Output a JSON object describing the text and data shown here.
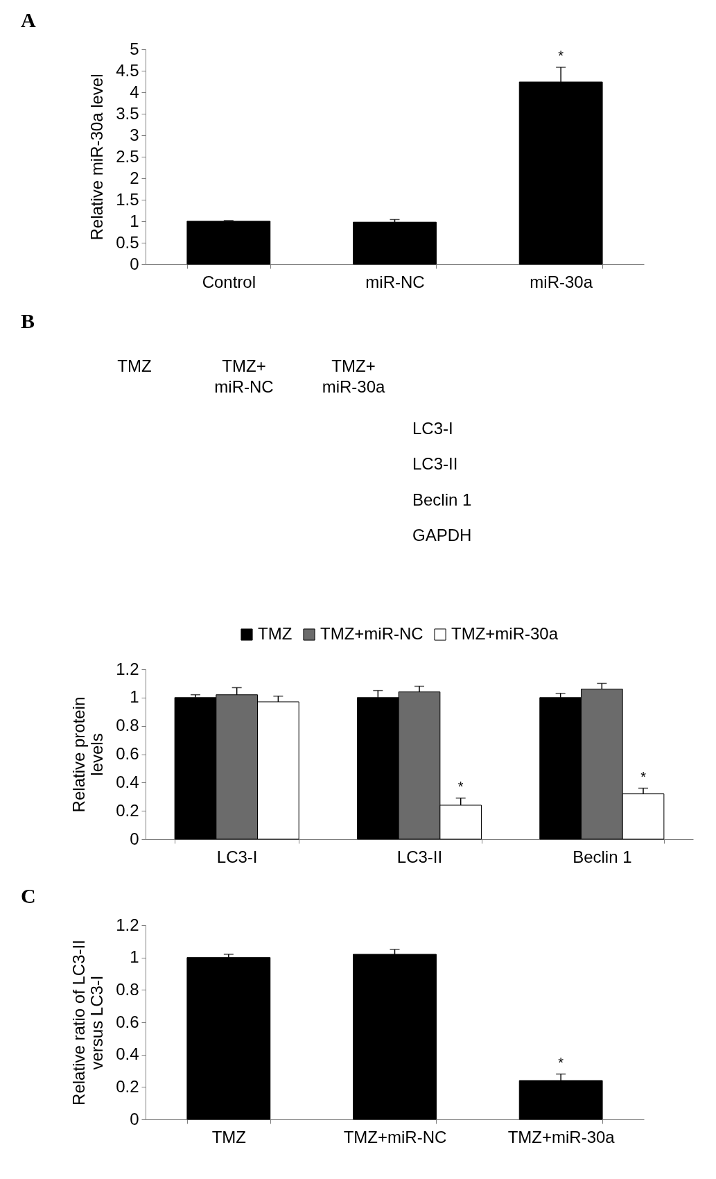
{
  "chart_data": [
    {
      "type": "bar",
      "title": "A",
      "ylabel": "Relative miR-30a level",
      "categories": [
        "Control",
        "miR-NC",
        "miR-30a"
      ],
      "values": [
        1.0,
        0.98,
        4.24
      ],
      "errors": [
        [
          1.0,
          1.02
        ],
        [
          0.98,
          1.04
        ],
        [
          4.24,
          4.58
        ]
      ],
      "value_labels": [
        null,
        null,
        "*"
      ],
      "color": "#000000",
      "ylim": [
        0,
        5
      ],
      "yticks": [
        0,
        0.5,
        1,
        1.5,
        2,
        2.5,
        3,
        3.5,
        4,
        4.5,
        5
      ]
    },
    {
      "type": "other",
      "title": "B",
      "categories": [
        "TMZ",
        "TMZ+miR-NC",
        "TMZ+miR-30a"
      ],
      "y_categories": [
        "LC3-I",
        "LC3-II",
        "Beclin 1",
        "GAPDH"
      ]
    },
    {
      "type": "bar",
      "ylabel": "Relative protein levels",
      "categories": [
        "LC3-I",
        "LC3-II",
        "Beclin 1"
      ],
      "series": [
        {
          "name": "TMZ",
          "color": "#000000",
          "values": [
            1.0,
            1.0,
            1.0
          ],
          "errors": [
            [
              1.0,
              1.02
            ],
            [
              1.0,
              1.05
            ],
            [
              1.0,
              1.03
            ]
          ]
        },
        {
          "name": "TMZ+miR-NC",
          "color": "#6b6b6b",
          "values": [
            1.02,
            1.04,
            1.06
          ],
          "errors": [
            [
              1.02,
              1.07
            ],
            [
              1.04,
              1.08
            ],
            [
              1.06,
              1.1
            ]
          ]
        },
        {
          "name": "TMZ+miR-30a",
          "color": "#ffffff",
          "values": [
            0.97,
            0.24,
            0.32
          ],
          "errors": [
            [
              0.97,
              1.01
            ],
            [
              0.24,
              0.29
            ],
            [
              0.32,
              0.36
            ]
          ],
          "value_labels": [
            null,
            "*",
            "*"
          ]
        }
      ],
      "ylim": [
        0,
        1.2
      ],
      "yticks": [
        0,
        0.2,
        0.4,
        0.6,
        0.8,
        1,
        1.2
      ],
      "legend": "top"
    },
    {
      "type": "bar",
      "title": "C",
      "ylabel": "Relative ratio of LC3-II versus LC3-I",
      "categories": [
        "TMZ",
        "TMZ+miR-NC",
        "TMZ+miR-30a"
      ],
      "values": [
        1.0,
        1.02,
        0.24
      ],
      "errors": [
        [
          1.0,
          1.02
        ],
        [
          1.02,
          1.05
        ],
        [
          0.24,
          0.28
        ]
      ],
      "value_labels": [
        null,
        null,
        "*"
      ],
      "color": "#000000",
      "ylim": [
        0,
        1.2
      ],
      "yticks": [
        0,
        0.2,
        0.4,
        0.6,
        0.8,
        1,
        1.2
      ]
    }
  ]
}
